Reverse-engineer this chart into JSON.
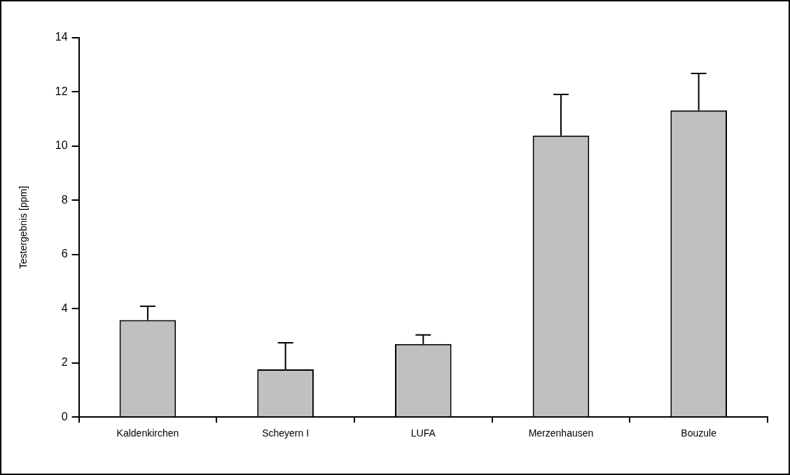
{
  "chart_data": {
    "type": "bar",
    "ylabel": "Testergebnis [ppm]",
    "categories": [
      "Kaldenkirchen",
      "Scheyern I",
      "LUFA",
      "Merzenhausen",
      "Bouzule"
    ],
    "values": [
      3.58,
      1.76,
      2.7,
      10.39,
      11.32
    ],
    "errors": [
      [
        3.58,
        4.09
      ],
      [
        1.76,
        2.74
      ],
      [
        2.7,
        3.03
      ],
      [
        10.39,
        11.91
      ],
      [
        11.32,
        12.68
      ]
    ],
    "color": "#c0c0c0",
    "ylim": [
      0,
      14
    ],
    "yticks": [
      0,
      2,
      4,
      6,
      8,
      10,
      12,
      14
    ],
    "grid": false,
    "legend": false
  }
}
